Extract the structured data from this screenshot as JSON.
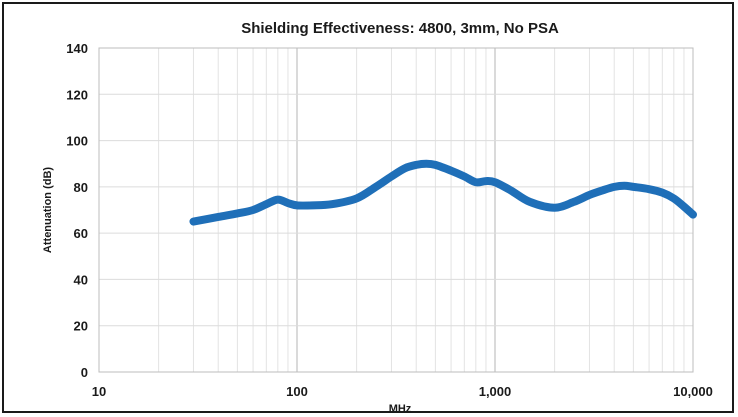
{
  "chart_data": {
    "type": "line",
    "title": "Shielding Effectiveness: 4800, 3mm, No PSA",
    "xlabel": "MHz",
    "ylabel": "Attenuation (dB)",
    "x_scale": "log",
    "xlim": [
      10,
      10000
    ],
    "ylim": [
      0,
      140
    ],
    "y_ticks": [
      0,
      20,
      40,
      60,
      80,
      100,
      120,
      140
    ],
    "y_tick_labels": [
      "0",
      "20",
      "40",
      "60",
      "80",
      "100",
      "120",
      "140"
    ],
    "x_ticks": [
      10,
      100,
      1000,
      10000
    ],
    "x_tick_labels": [
      "10",
      "100",
      "1,000",
      "10,000"
    ],
    "grid": true,
    "line_color": "#1f6fb8",
    "series": [
      {
        "x": [
          30,
          40,
          50,
          60,
          70,
          80,
          90,
          100,
          120,
          150,
          200,
          250,
          300,
          350,
          400,
          450,
          500,
          600,
          700,
          800,
          900,
          1000,
          1200,
          1500,
          2000,
          2500,
          3000,
          3500,
          4000,
          4500,
          5000,
          6000,
          7000,
          8000,
          9000,
          10000
        ],
        "y": [
          65,
          67,
          68.5,
          70,
          72.5,
          74.5,
          73,
          72,
          72,
          72.5,
          75,
          80,
          84.5,
          88,
          89.5,
          90,
          89.5,
          87,
          84.5,
          82,
          82.5,
          82,
          78.5,
          73.5,
          71,
          73.5,
          76.5,
          78.5,
          80,
          80.5,
          80,
          79,
          77.5,
          75,
          71.5,
          68
        ]
      }
    ]
  }
}
